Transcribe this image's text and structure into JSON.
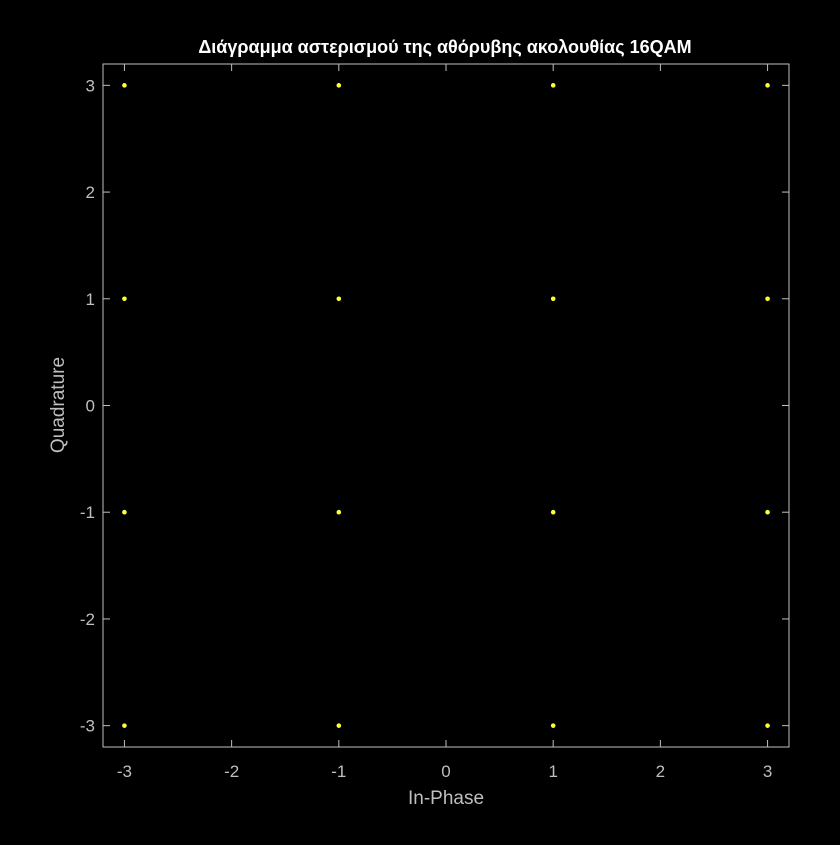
{
  "chart_data": {
    "type": "scatter",
    "title": "Διάγραμμα αστερισμού της αθόρυβης ακολουθίας 16QAM",
    "xlabel": "In-Phase",
    "ylabel": "Quadrature",
    "xlim": [
      -3.2,
      3.2
    ],
    "ylim": [
      -3.2,
      3.2
    ],
    "xticks": [
      -3,
      -2,
      -1,
      0,
      1,
      2,
      3
    ],
    "yticks": [
      -3,
      -2,
      -1,
      0,
      1,
      2,
      3
    ],
    "xtick_labels": [
      "-3",
      "-2",
      "-1",
      "0",
      "1",
      "2",
      "3"
    ],
    "ytick_labels": [
      "-3",
      "-2",
      "-1",
      "0",
      "1",
      "2",
      "3"
    ],
    "grid": false,
    "background_color": "#000000",
    "axis_color": "#bfbfbf",
    "title_color": "#ffffff",
    "marker_color": "#ffff33",
    "series": [
      {
        "points": [
          [
            -3,
            3
          ],
          [
            -1,
            3
          ],
          [
            1,
            3
          ],
          [
            3,
            3
          ],
          [
            -3,
            1
          ],
          [
            -1,
            1
          ],
          [
            1,
            1
          ],
          [
            3,
            1
          ],
          [
            -3,
            -1
          ],
          [
            -1,
            -1
          ],
          [
            1,
            -1
          ],
          [
            3,
            -1
          ],
          [
            -3,
            -3
          ],
          [
            -1,
            -3
          ],
          [
            1,
            -3
          ],
          [
            3,
            -3
          ]
        ]
      }
    ]
  }
}
